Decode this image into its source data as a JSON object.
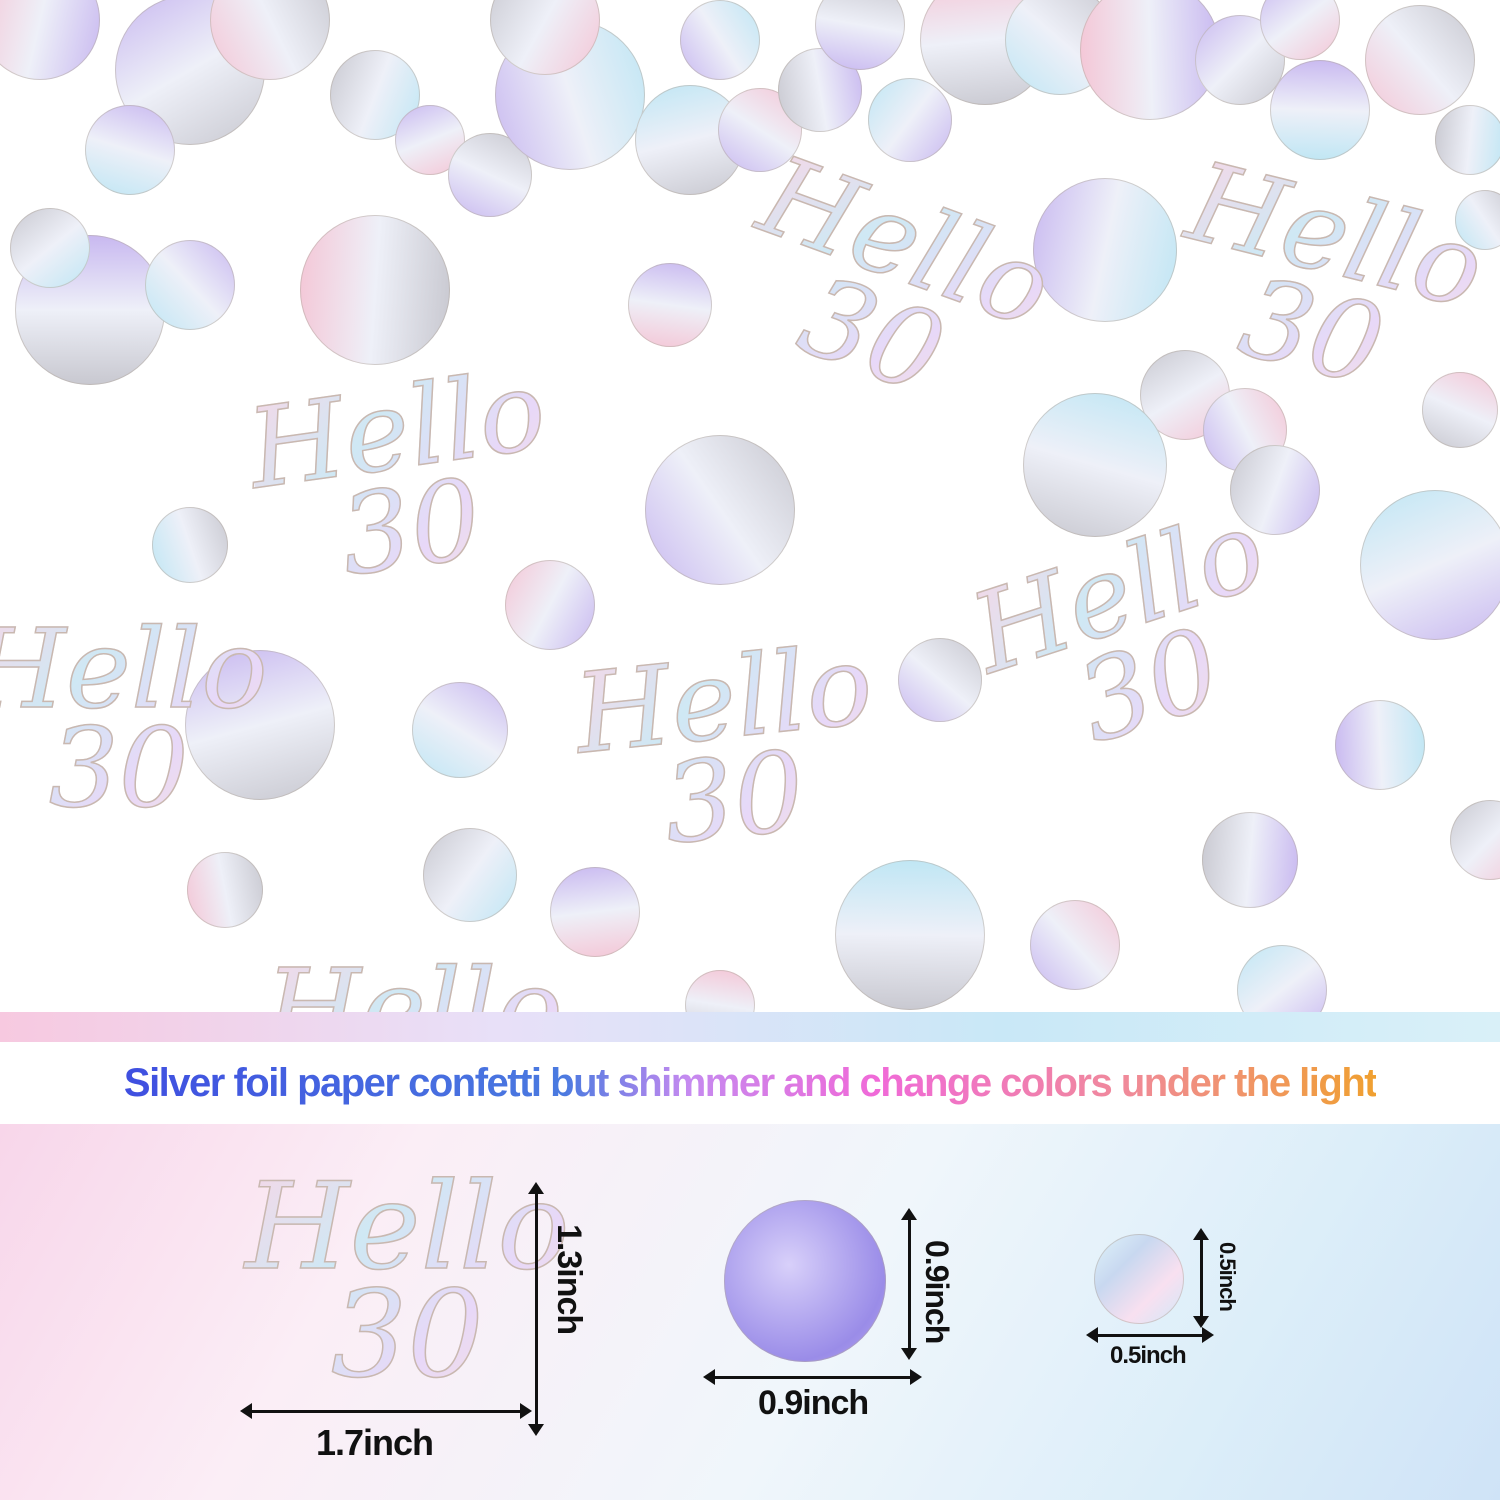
{
  "photo": {
    "confetti_text": "Hello\n30",
    "colors": {
      "foil_pink": "#f4c6d6",
      "foil_blue": "#bfe6f4",
      "foil_lilac": "#c8b8f0",
      "foil_silver": "#c8c8d0"
    }
  },
  "headline": "Silver foil paper confetti but shimmer and change colors under the light",
  "headline_colors": [
    "#3f4fe0",
    "#c58af0",
    "#f06ad8",
    "#f0a030"
  ],
  "sizes": [
    {
      "item": "Hello 30",
      "height": "1.3inch",
      "width": "1.7inch"
    },
    {
      "item": "large circle",
      "height": "0.9inch",
      "width": "0.9inch"
    },
    {
      "item": "small circle",
      "height": "0.5inch",
      "width": "0.5inch"
    }
  ]
}
